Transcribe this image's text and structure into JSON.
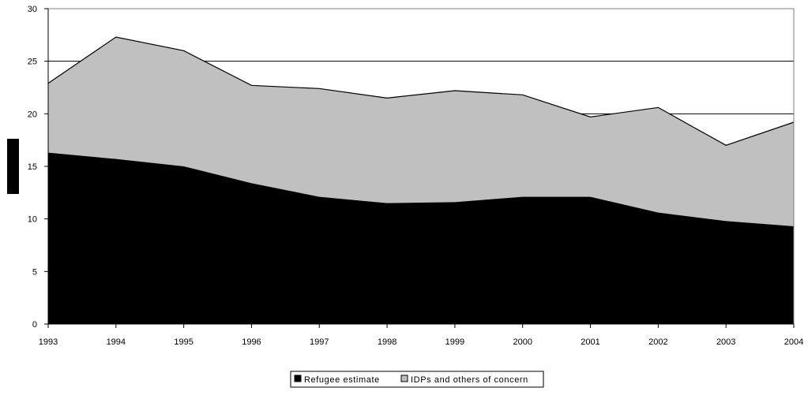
{
  "chart_data": {
    "type": "area",
    "stacked": true,
    "title": "",
    "xlabel": "",
    "ylabel": "",
    "x": [
      "1993",
      "1994",
      "1995",
      "1996",
      "1997",
      "1998",
      "1999",
      "2000",
      "2001",
      "2002",
      "2003",
      "2004"
    ],
    "ylim": [
      0,
      30
    ],
    "yticks": [
      0,
      5,
      10,
      15,
      20,
      25,
      30
    ],
    "grid": true,
    "legend_position": "bottom-center",
    "series": [
      {
        "name": "Refugee estimate",
        "color": "#000000",
        "values": [
          16.3,
          15.7,
          15.0,
          13.4,
          12.1,
          11.5,
          11.6,
          12.1,
          12.1,
          10.6,
          9.8,
          9.3
        ]
      },
      {
        "name": "IDPs and others of concern",
        "color": "#c0c0c0",
        "values": [
          6.6,
          11.6,
          11.0,
          9.3,
          10.3,
          10.0,
          10.6,
          9.7,
          7.6,
          10.0,
          7.2,
          9.9
        ]
      }
    ]
  }
}
